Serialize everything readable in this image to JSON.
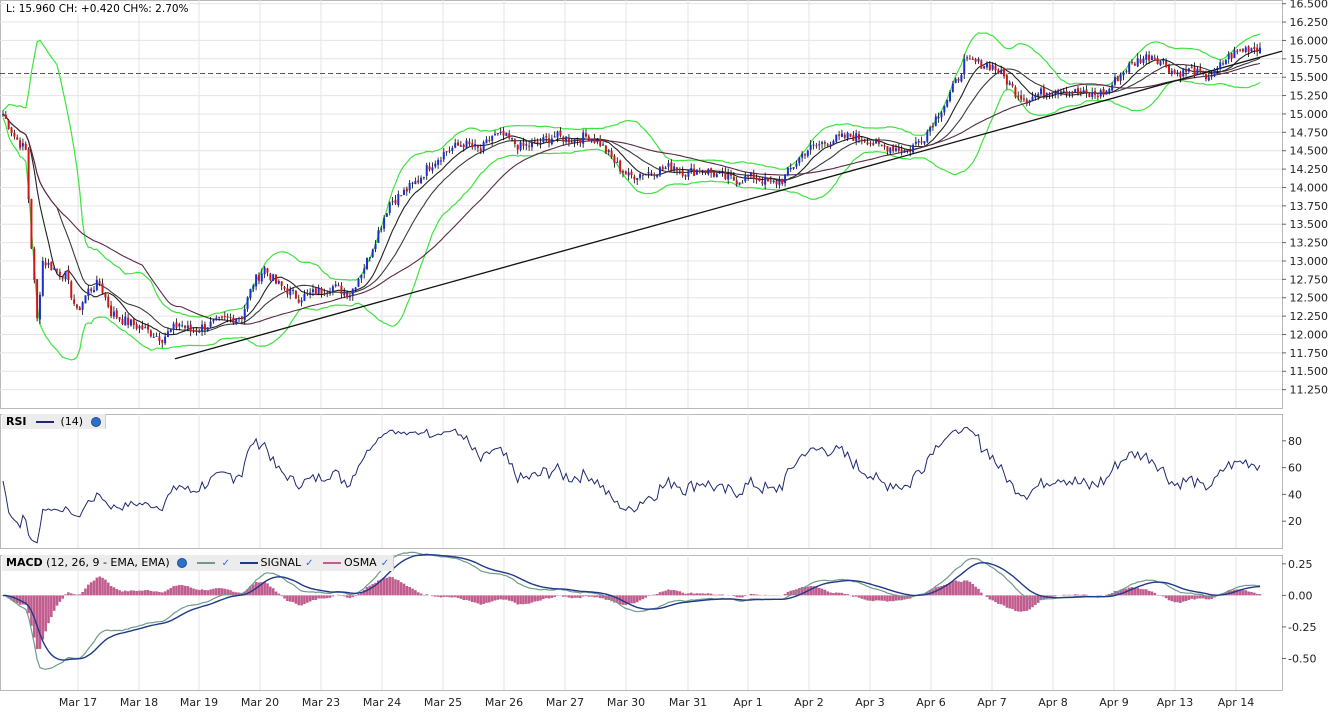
{
  "header": {
    "info": "L: 15.960 CH: +0.420 CH%: 2.70%"
  },
  "panels": {
    "rsi": {
      "name": "RSI",
      "param": "(14)",
      "color": "#1f2a6e"
    },
    "macd": {
      "name": "MACD",
      "param": "(12, 26, 9 - EMA, EMA)",
      "legend": [
        {
          "label": "",
          "color": "#6f9a8e"
        },
        {
          "label": "SIGNAL",
          "color": "#1f3a8a"
        },
        {
          "label": "OSMA",
          "color": "#c25c8e"
        }
      ]
    }
  },
  "chart_data": [
    {
      "type": "candlestick",
      "title": "",
      "ylim": [
        11.0,
        16.55
      ],
      "y_ticks": [
        "16.500",
        "16.250",
        "16.000",
        "15.750",
        "15.500",
        "15.250",
        "15.000",
        "14.750",
        "14.500",
        "14.250",
        "14.000",
        "13.750",
        "13.500",
        "13.250",
        "13.000",
        "12.750",
        "12.500",
        "12.250",
        "12.000",
        "11.750",
        "11.500",
        "11.250"
      ],
      "x_tick_labels": [
        "Mar 17",
        "Mar 18",
        "Mar 19",
        "Mar 20",
        "Mar 23",
        "Mar 24",
        "Mar 25",
        "Mar 26",
        "Mar 27",
        "Mar 30",
        "Mar 31",
        "Apr 1",
        "Apr 2",
        "Apr 3",
        "Apr 6",
        "Apr 7",
        "Apr 8",
        "Apr 9",
        "Apr 13",
        "Apr 14"
      ],
      "close_anchors": [
        [
          0,
          15.0
        ],
        [
          4,
          14.7
        ],
        [
          8,
          14.5
        ],
        [
          10,
          13.2
        ],
        [
          12,
          12.2
        ],
        [
          14,
          13.0
        ],
        [
          18,
          12.9
        ],
        [
          22,
          12.8
        ],
        [
          26,
          12.3
        ],
        [
          30,
          12.6
        ],
        [
          34,
          12.7
        ],
        [
          38,
          12.3
        ],
        [
          42,
          12.2
        ],
        [
          48,
          12.1
        ],
        [
          56,
          11.95
        ],
        [
          62,
          12.15
        ],
        [
          66,
          12.05
        ],
        [
          70,
          12.1
        ],
        [
          78,
          12.2
        ],
        [
          84,
          12.25
        ],
        [
          88,
          12.7
        ],
        [
          92,
          12.9
        ],
        [
          96,
          12.7
        ],
        [
          100,
          12.6
        ],
        [
          104,
          12.5
        ],
        [
          108,
          12.55
        ],
        [
          112,
          12.6
        ],
        [
          116,
          12.65
        ],
        [
          122,
          12.55
        ],
        [
          128,
          13.0
        ],
        [
          132,
          13.4
        ],
        [
          136,
          13.8
        ],
        [
          140,
          13.9
        ],
        [
          146,
          14.1
        ],
        [
          150,
          14.3
        ],
        [
          156,
          14.5
        ],
        [
          162,
          14.6
        ],
        [
          168,
          14.5
        ],
        [
          172,
          14.7
        ],
        [
          176,
          14.7
        ],
        [
          182,
          14.55
        ],
        [
          188,
          14.6
        ],
        [
          194,
          14.7
        ],
        [
          200,
          14.65
        ],
        [
          206,
          14.7
        ],
        [
          210,
          14.6
        ],
        [
          216,
          14.3
        ],
        [
          220,
          14.15
        ],
        [
          226,
          14.2
        ],
        [
          232,
          14.25
        ],
        [
          236,
          14.3
        ],
        [
          240,
          14.2
        ],
        [
          246,
          14.25
        ],
        [
          252,
          14.15
        ],
        [
          258,
          14.1
        ],
        [
          264,
          14.15
        ],
        [
          270,
          14.05
        ],
        [
          274,
          14.1
        ],
        [
          278,
          14.3
        ],
        [
          282,
          14.5
        ],
        [
          288,
          14.6
        ],
        [
          292,
          14.65
        ],
        [
          298,
          14.7
        ],
        [
          304,
          14.65
        ],
        [
          308,
          14.55
        ],
        [
          312,
          14.55
        ],
        [
          318,
          14.5
        ],
        [
          324,
          14.7
        ],
        [
          328,
          14.95
        ],
        [
          332,
          15.2
        ],
        [
          336,
          15.5
        ],
        [
          338,
          15.7
        ],
        [
          342,
          15.7
        ],
        [
          348,
          15.65
        ],
        [
          352,
          15.5
        ],
        [
          356,
          15.3
        ],
        [
          360,
          15.2
        ],
        [
          366,
          15.3
        ],
        [
          372,
          15.35
        ],
        [
          376,
          15.3
        ],
        [
          382,
          15.25
        ],
        [
          388,
          15.3
        ],
        [
          392,
          15.5
        ],
        [
          396,
          15.65
        ],
        [
          400,
          15.75
        ],
        [
          404,
          15.8
        ],
        [
          408,
          15.7
        ],
        [
          412,
          15.55
        ],
        [
          418,
          15.6
        ],
        [
          422,
          15.5
        ],
        [
          426,
          15.55
        ],
        [
          430,
          15.75
        ],
        [
          434,
          15.85
        ],
        [
          438,
          15.9
        ],
        [
          442,
          15.9
        ]
      ],
      "ma_periods": [
        10,
        20,
        50
      ],
      "bollinger": {
        "period": 20,
        "k": 2,
        "color": "#3ee33e"
      },
      "trendline": {
        "from": [
          "Mar 19",
          11.67
        ],
        "to": [
          "Apr 14",
          15.68
        ]
      },
      "reference_line": 15.55
    },
    {
      "type": "line",
      "title": "RSI",
      "ylim": [
        0,
        100
      ],
      "y_ticks": [
        "80",
        "60",
        "40",
        "20"
      ],
      "series": [
        {
          "name": "(14)",
          "color": "#1f2a6e",
          "derived_from": "close",
          "period": 14
        }
      ]
    },
    {
      "type": "line+bar",
      "title": "MACD",
      "ylim": [
        -0.75,
        0.32
      ],
      "y_ticks": [
        "0.25",
        "0.00",
        "-0.25",
        "-0.50"
      ],
      "series": [
        {
          "name": "",
          "color": "#6f9a8e",
          "fast": 12,
          "slow": 26
        },
        {
          "name": "SIGNAL",
          "color": "#1f3a8a",
          "period": 9
        },
        {
          "name": "OSMA",
          "color": "#c25c8e"
        }
      ]
    }
  ]
}
